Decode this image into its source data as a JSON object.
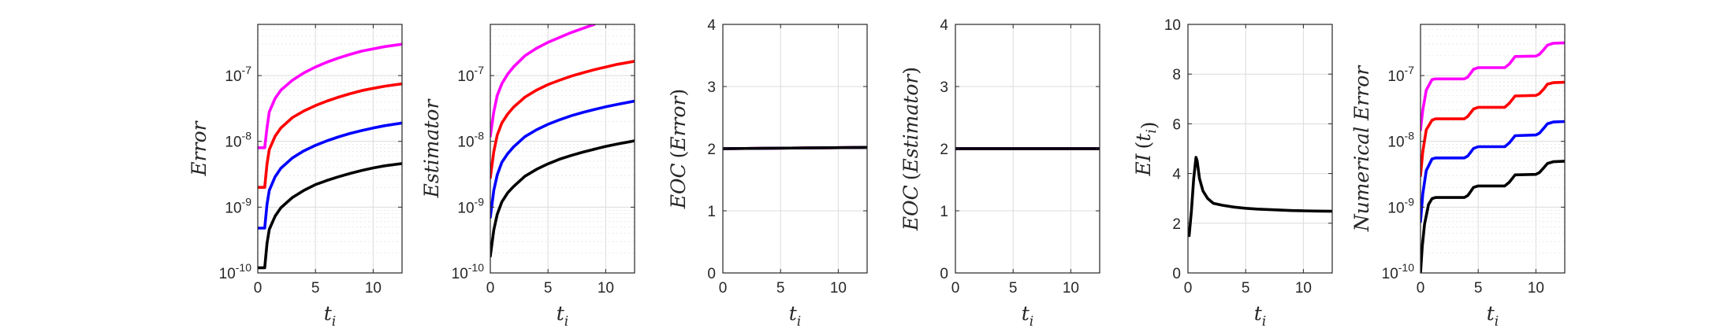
{
  "chart_data": [
    {
      "type": "line",
      "ylabel_parts": [
        "Error"
      ],
      "xlabel": "t",
      "xlabel_sub": "i",
      "yscale": "log",
      "xlim": [
        0,
        12.5
      ],
      "ylim": [
        1e-10,
        6e-07
      ],
      "xticks": [
        0,
        5,
        10
      ],
      "xtick_labels": [
        "0",
        "5",
        "10"
      ],
      "yticks": [
        1e-10,
        1e-09,
        1e-08,
        1e-07
      ],
      "ytick_labels": [
        "10",
        "10",
        "10",
        "10"
      ],
      "ytick_exponents": [
        "-10",
        "-9",
        "-8",
        "-7"
      ],
      "grid": true,
      "series": [
        {
          "color": "#ff00ff",
          "x": [
            0.0,
            0.4,
            0.6,
            0.8,
            1,
            1.5,
            2,
            3,
            4,
            5,
            6,
            7,
            8,
            9,
            10,
            11,
            12.5
          ],
          "y": [
            8e-09,
            8e-09,
            8e-09,
            1.6e-08,
            2.8e-08,
            4.5e-08,
            6e-08,
            8.5e-08,
            1.1e-07,
            1.35e-07,
            1.6e-07,
            1.85e-07,
            2.1e-07,
            2.35e-07,
            2.55e-07,
            2.75e-07,
            3e-07
          ]
        },
        {
          "color": "#ff0000",
          "x": [
            0.0,
            0.4,
            0.6,
            0.8,
            1,
            1.5,
            2,
            3,
            4,
            5,
            6,
            7,
            8,
            9,
            10,
            11,
            12.5
          ],
          "y": [
            2e-09,
            2e-09,
            2e-09,
            4.5e-09,
            7.5e-09,
            1.2e-08,
            1.6e-08,
            2.3e-08,
            2.9e-08,
            3.5e-08,
            4.1e-08,
            4.7e-08,
            5.3e-08,
            5.9e-08,
            6.4e-08,
            6.9e-08,
            7.5e-08
          ]
        },
        {
          "color": "#0000ff",
          "x": [
            0.0,
            0.4,
            0.6,
            0.8,
            1,
            1.5,
            2,
            3,
            4,
            5,
            6,
            7,
            8,
            9,
            10,
            11,
            12.5
          ],
          "y": [
            4.8e-10,
            4.8e-10,
            4.8e-10,
            1.1e-09,
            1.8e-09,
            2.9e-09,
            3.9e-09,
            5.6e-09,
            7.2e-09,
            8.7e-09,
            1.02e-08,
            1.17e-08,
            1.32e-08,
            1.46e-08,
            1.6e-08,
            1.73e-08,
            1.9e-08
          ]
        },
        {
          "color": "#000000",
          "x": [
            0.0,
            0.4,
            0.6,
            0.8,
            1,
            1.5,
            2,
            3,
            4,
            5,
            6,
            7,
            8,
            9,
            10,
            11,
            12.5
          ],
          "y": [
            1.2e-10,
            1.2e-10,
            1.2e-10,
            2.8e-10,
            4.6e-10,
            7.3e-10,
            9.8e-10,
            1.4e-09,
            1.8e-09,
            2.2e-09,
            2.55e-09,
            2.9e-09,
            3.25e-09,
            3.6e-09,
            3.95e-09,
            4.25e-09,
            4.6e-09
          ]
        }
      ]
    },
    {
      "type": "line",
      "ylabel_parts": [
        "Estimator"
      ],
      "xlabel": "t",
      "xlabel_sub": "i",
      "yscale": "log",
      "xlim": [
        0,
        12.5
      ],
      "ylim": [
        1e-10,
        6e-07
      ],
      "xticks": [
        0,
        5,
        10
      ],
      "xtick_labels": [
        "0",
        "5",
        "10"
      ],
      "yticks": [
        1e-10,
        1e-09,
        1e-08,
        1e-07
      ],
      "ytick_labels": [
        "10",
        "10",
        "10",
        "10"
      ],
      "ytick_exponents": [
        "-10",
        "-9",
        "-8",
        "-7"
      ],
      "grid": true,
      "series": [
        {
          "color": "#ff00ff",
          "x": [
            0.0,
            0.3,
            0.6,
            1,
            1.5,
            2,
            3,
            4,
            5,
            6,
            7,
            8,
            9
          ],
          "y": [
            1.2e-08,
            2.8e-08,
            5e-08,
            7.5e-08,
            1.05e-07,
            1.35e-07,
            2e-07,
            2.6e-07,
            3.2e-07,
            3.8e-07,
            4.5e-07,
            5.2e-07,
            6e-07
          ]
        },
        {
          "color": "#ff0000",
          "x": [
            0.0,
            0.3,
            0.6,
            1,
            1.5,
            2,
            3,
            4,
            5,
            6,
            7,
            8,
            9,
            10,
            11,
            12.5
          ],
          "y": [
            2.8e-09,
            7e-09,
            1.25e-08,
            1.9e-08,
            2.6e-08,
            3.3e-08,
            4.7e-08,
            6e-08,
            7.3e-08,
            8.5e-08,
            9.8e-08,
            1.1e-07,
            1.23e-07,
            1.35e-07,
            1.48e-07,
            1.65e-07
          ]
        },
        {
          "color": "#0000ff",
          "x": [
            0.0,
            0.3,
            0.6,
            1,
            1.5,
            2,
            3,
            4,
            5,
            6,
            7,
            8,
            9,
            10,
            11,
            12.5
          ],
          "y": [
            7e-10,
            1.8e-09,
            3.1e-09,
            4.8e-09,
            6.5e-09,
            8.2e-09,
            1.18e-08,
            1.5e-08,
            1.82e-08,
            2.13e-08,
            2.45e-08,
            2.75e-08,
            3.05e-08,
            3.35e-08,
            3.65e-08,
            4.1e-08
          ]
        },
        {
          "color": "#000000",
          "x": [
            0.0,
            0.3,
            0.6,
            1,
            1.5,
            2,
            3,
            4,
            5,
            6,
            7,
            8,
            9,
            10,
            11,
            12.5
          ],
          "y": [
            1.8e-10,
            4.5e-10,
            7.8e-10,
            1.2e-09,
            1.65e-09,
            2.05e-09,
            2.95e-09,
            3.75e-09,
            4.55e-09,
            5.35e-09,
            6.1e-09,
            6.85e-09,
            7.6e-09,
            8.4e-09,
            9.1e-09,
            1.02e-08
          ]
        }
      ]
    },
    {
      "type": "line",
      "ylabel_parts": [
        "EOC",
        "(",
        "Error",
        ")"
      ],
      "xlabel": "t",
      "xlabel_sub": "i",
      "yscale": "linear",
      "xlim": [
        0,
        12.5
      ],
      "ylim": [
        0,
        4
      ],
      "xticks": [
        0,
        5,
        10
      ],
      "xtick_labels": [
        "0",
        "5",
        "10"
      ],
      "yticks": [
        0,
        1,
        2,
        3,
        4
      ],
      "ytick_labels": [
        "0",
        "1",
        "2",
        "3",
        "4"
      ],
      "grid": true,
      "series": [
        {
          "color": "#ff00ff",
          "x": [
            0,
            12.5
          ],
          "y": [
            2.0,
            2.02
          ]
        },
        {
          "color": "#ff0000",
          "x": [
            0,
            12.5
          ],
          "y": [
            2.0,
            2.02
          ]
        },
        {
          "color": "#0000ff",
          "x": [
            0,
            12.5
          ],
          "y": [
            2.0,
            2.02
          ]
        },
        {
          "color": "#000000",
          "x": [
            0,
            12.5
          ],
          "y": [
            2.0,
            2.02
          ]
        }
      ]
    },
    {
      "type": "line",
      "ylabel_parts": [
        "EOC",
        "(",
        "Estimator",
        ")"
      ],
      "xlabel": "t",
      "xlabel_sub": "i",
      "yscale": "linear",
      "xlim": [
        0,
        12.5
      ],
      "ylim": [
        0,
        4
      ],
      "xticks": [
        0,
        5,
        10
      ],
      "xtick_labels": [
        "0",
        "5",
        "10"
      ],
      "yticks": [
        0,
        1,
        2,
        3,
        4
      ],
      "ytick_labels": [
        "0",
        "1",
        "2",
        "3",
        "4"
      ],
      "grid": true,
      "series": [
        {
          "color": "#ff00ff",
          "x": [
            0,
            12.5
          ],
          "y": [
            2.0,
            2.0
          ]
        },
        {
          "color": "#ff0000",
          "x": [
            0,
            12.5
          ],
          "y": [
            2.0,
            2.0
          ]
        },
        {
          "color": "#0000ff",
          "x": [
            0,
            12.5
          ],
          "y": [
            2.0,
            2.0
          ]
        },
        {
          "color": "#000000",
          "x": [
            0,
            12.5
          ],
          "y": [
            2.0,
            2.0
          ]
        }
      ]
    },
    {
      "type": "line",
      "ylabel_parts": [
        "EI",
        "(",
        "t",
        ")"
      ],
      "ylabel_sub": "i",
      "xlabel": "t",
      "xlabel_sub": "i",
      "yscale": "linear",
      "xlim": [
        0,
        12.5
      ],
      "ylim": [
        0,
        10
      ],
      "xticks": [
        0,
        5,
        10
      ],
      "xtick_labels": [
        "0",
        "5",
        "10"
      ],
      "yticks": [
        0,
        2,
        4,
        6,
        8,
        10
      ],
      "ytick_labels": [
        "0",
        "2",
        "4",
        "6",
        "8",
        "10"
      ],
      "grid": true,
      "series": [
        {
          "color": "#000000",
          "x": [
            0.1,
            0.3,
            0.5,
            0.7,
            0.8,
            1.0,
            1.3,
            1.7,
            2.2,
            3,
            4,
            5,
            6,
            7,
            8,
            9,
            10,
            11,
            12.5
          ],
          "y": [
            1.5,
            2.5,
            3.8,
            4.65,
            4.5,
            3.8,
            3.3,
            3.0,
            2.8,
            2.72,
            2.65,
            2.6,
            2.57,
            2.55,
            2.53,
            2.51,
            2.5,
            2.49,
            2.48
          ]
        }
      ]
    },
    {
      "type": "line",
      "ylabel_parts": [
        "Numerical Error"
      ],
      "xlabel": "t",
      "xlabel_sub": "i",
      "yscale": "log",
      "xlim": [
        0,
        12.5
      ],
      "ylim": [
        1e-10,
        6e-07
      ],
      "xticks": [
        0,
        5,
        10
      ],
      "xtick_labels": [
        "0",
        "5",
        "10"
      ],
      "yticks": [
        1e-10,
        1e-09,
        1e-08,
        1e-07
      ],
      "ytick_labels": [
        "10",
        "10",
        "10",
        "10"
      ],
      "ytick_exponents": [
        "-10",
        "-9",
        "-8",
        "-7"
      ],
      "grid": true,
      "series": [
        {
          "color": "#ff00ff",
          "x": [
            0.0,
            0.2,
            0.5,
            1.0,
            1.3,
            3.8,
            4.1,
            4.6,
            5.0,
            7.3,
            7.7,
            8.2,
            10.0,
            10.3,
            10.7,
            11.0,
            11.5,
            12.5
          ],
          "y": [
            1.5e-08,
            3e-08,
            6e-08,
            8.7e-08,
            8.9e-08,
            8.9e-08,
            9.5e-08,
            1.25e-07,
            1.32e-07,
            1.32e-07,
            1.5e-07,
            1.95e-07,
            1.98e-07,
            2.1e-07,
            2.5e-07,
            2.9e-07,
            3.1e-07,
            3.15e-07
          ]
        },
        {
          "color": "#ff0000",
          "x": [
            0.0,
            0.2,
            0.5,
            1.0,
            1.3,
            3.8,
            4.1,
            4.6,
            5.0,
            7.3,
            7.7,
            8.2,
            10.0,
            10.3,
            10.7,
            11.0,
            11.5,
            12.5
          ],
          "y": [
            3e-09,
            7e-09,
            1.5e-08,
            2.1e-08,
            2.2e-08,
            2.2e-08,
            2.4e-08,
            3.1e-08,
            3.3e-08,
            3.3e-08,
            3.8e-08,
            4.9e-08,
            5e-08,
            5.3e-08,
            6.3e-08,
            7.4e-08,
            7.8e-08,
            7.9e-08
          ]
        },
        {
          "color": "#0000ff",
          "x": [
            0.0,
            0.2,
            0.5,
            1.0,
            1.3,
            3.8,
            4.1,
            4.6,
            5.0,
            7.3,
            7.7,
            8.2,
            10.0,
            10.3,
            10.7,
            11.0,
            11.5,
            12.5
          ],
          "y": [
            6e-10,
            1.6e-09,
            3.6e-09,
            5.4e-09,
            5.6e-09,
            5.6e-09,
            6e-09,
            7.8e-09,
            8.3e-09,
            8.3e-09,
            9.5e-09,
            1.22e-08,
            1.25e-08,
            1.33e-08,
            1.6e-08,
            1.85e-08,
            1.97e-08,
            2e-08
          ]
        },
        {
          "color": "#000000",
          "x": [
            0.0,
            0.15,
            0.35,
            0.7,
            1.0,
            1.3,
            3.8,
            4.1,
            4.6,
            5.0,
            7.3,
            7.7,
            8.2,
            10.0,
            10.3,
            10.7,
            11.0,
            11.5,
            12.5
          ],
          "y": [
            1e-10,
            2.5e-10,
            5.5e-10,
            1.1e-09,
            1.35e-09,
            1.4e-09,
            1.4e-09,
            1.5e-09,
            2e-09,
            2.1e-09,
            2.1e-09,
            2.4e-09,
            3.1e-09,
            3.15e-09,
            3.35e-09,
            4e-09,
            4.6e-09,
            4.9e-09,
            5e-09
          ]
        }
      ]
    }
  ]
}
